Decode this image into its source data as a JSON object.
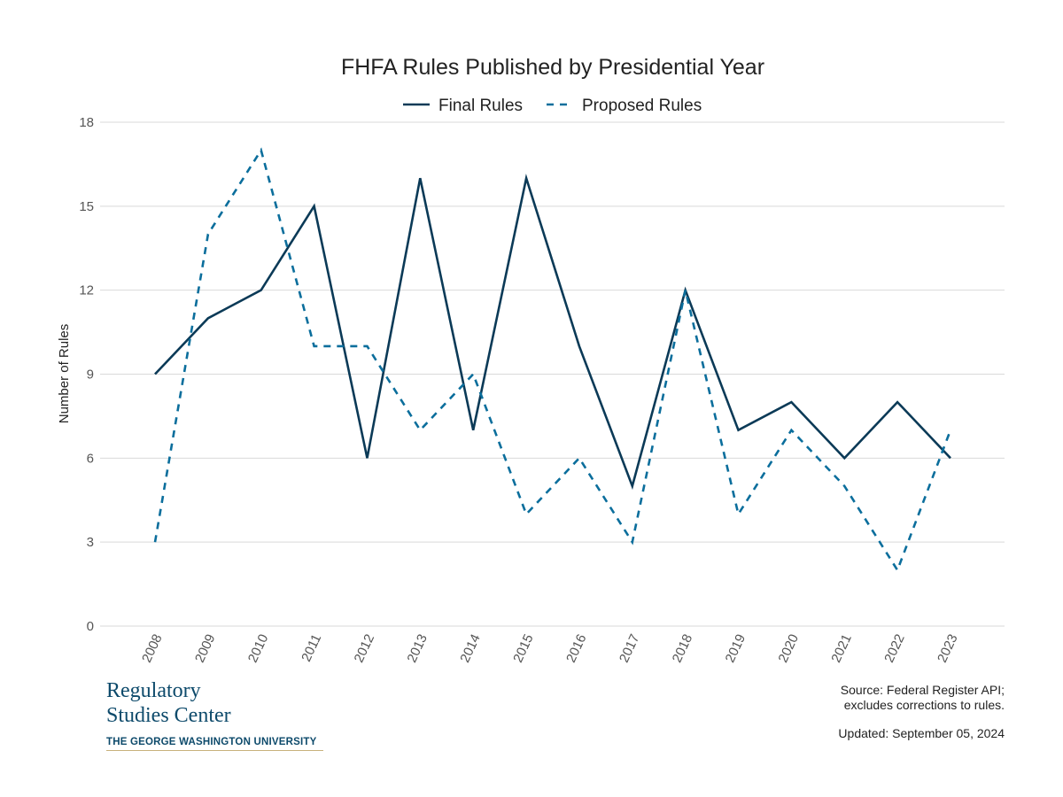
{
  "chart_data": {
    "type": "line",
    "title": "FHFA Rules Published by Presidential Year",
    "xlabel": "",
    "ylabel": "Number of Rules",
    "categories": [
      "2008",
      "2009",
      "2010",
      "2011",
      "2012",
      "2013",
      "2014",
      "2015",
      "2016",
      "2017",
      "2018",
      "2019",
      "2020",
      "2021",
      "2022",
      "2023"
    ],
    "series": [
      {
        "name": "Final Rules",
        "values": [
          9,
          11,
          12,
          15,
          6,
          16,
          7,
          16,
          10,
          5,
          12,
          7,
          8,
          6,
          8,
          6
        ],
        "color": "#0b3a57",
        "dash": "solid"
      },
      {
        "name": "Proposed Rules",
        "values": [
          3,
          14,
          17,
          10,
          10,
          7,
          9,
          4,
          6,
          3,
          12,
          4,
          7,
          5,
          2,
          7
        ],
        "color": "#0b6e9c",
        "dash": "dashed"
      }
    ],
    "ylim": [
      0,
      18
    ],
    "yticks": [
      0,
      3,
      6,
      9,
      12,
      15,
      18
    ],
    "grid": true,
    "legend_position": "top-center"
  },
  "branding": {
    "line1": "Regulatory",
    "line2": "Studies Center",
    "university": "THE GEORGE WASHINGTON UNIVERSITY"
  },
  "footer": {
    "source_line1": "Source: Federal Register API;",
    "source_line2": "excludes corrections to rules.",
    "updated": "Updated: September 05, 2024"
  }
}
